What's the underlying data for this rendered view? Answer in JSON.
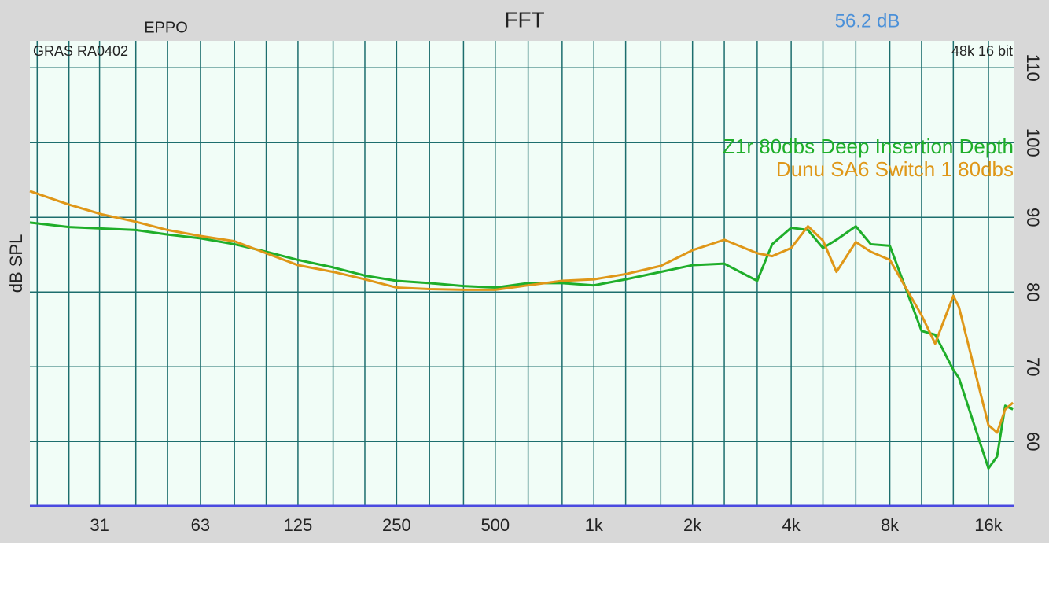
{
  "chart_data": {
    "type": "line",
    "title": "FFT",
    "left_label": "EPPO",
    "level": "56.2 dB",
    "mic_label": "GRAS RA0402",
    "format_label": "48k 16 bit",
    "y_label": "dB SPL",
    "x_scale": "log",
    "grid": true,
    "legend": "upper right",
    "x": [
      19,
      25,
      31.5,
      40,
      50,
      63,
      80,
      100,
      125,
      160,
      200,
      250,
      315,
      400,
      500,
      630,
      800,
      1000,
      1250,
      1600,
      2000,
      2500,
      3150,
      3500,
      4000,
      4500,
      5000,
      5500,
      6300,
      7000,
      8000,
      10000,
      11000,
      12500,
      13000,
      16000,
      17000,
      18000,
      19000
    ],
    "series": [
      {
        "name": "Z1r 80dbs Deep Insertion Depth",
        "color": "#1fae2a",
        "values": [
          89.3,
          88.7,
          88.5,
          88.3,
          87.7,
          87.2,
          86.4,
          85.4,
          84.3,
          83.3,
          82.2,
          81.5,
          81.2,
          80.8,
          80.6,
          81.2,
          81.2,
          80.9,
          81.7,
          82.7,
          83.6,
          83.8,
          81.5,
          86.4,
          88.6,
          88.3,
          85.9,
          87.0,
          88.8,
          86.4,
          86.2,
          74.8,
          74.3,
          69.6,
          68.5,
          56.4,
          58,
          64.8,
          64.3
        ]
      },
      {
        "name": "Dunu SA6 Switch 1 80dbs",
        "color": "#df9718",
        "values": [
          93.5,
          91.7,
          90.4,
          89.4,
          88.3,
          87.5,
          86.8,
          85.2,
          83.6,
          82.7,
          81.7,
          80.6,
          80.4,
          80.3,
          80.3,
          80.9,
          81.5,
          81.7,
          82.4,
          83.5,
          85.6,
          87.0,
          85.2,
          84.8,
          85.9,
          88.8,
          86.9,
          82.7,
          86.7,
          85.4,
          84.3,
          76.9,
          73.1,
          79.5,
          78,
          62.2,
          61.2,
          64.3,
          65.2
        ]
      }
    ],
    "xlim": [
      19,
      19200
    ],
    "xticks": [
      31,
      63,
      125,
      250,
      500,
      {
        "value": 1000,
        "label": "1k"
      },
      {
        "value": 2000,
        "label": "2k"
      },
      {
        "value": 4000,
        "label": "4k"
      },
      {
        "value": 8000,
        "label": "8k"
      },
      {
        "value": 16000,
        "label": "16k"
      }
    ],
    "x_minor_grid": [
      20,
      25,
      40,
      50,
      80,
      100,
      160,
      200,
      315,
      400,
      630,
      800,
      1250,
      1600,
      2500,
      3150,
      5000,
      6300,
      10000,
      12500
    ],
    "ylim": [
      51.4,
      113.6
    ],
    "yticks": [
      60,
      70,
      80,
      90,
      100,
      110
    ]
  }
}
